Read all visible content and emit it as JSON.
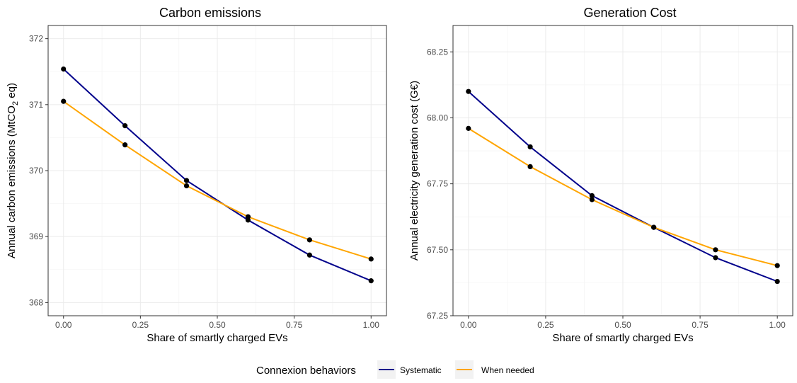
{
  "colors": {
    "systematic": "#00008b",
    "when_needed": "#ffa500",
    "grid_major": "#ebebeb",
    "grid_minor": "#f5f5f5",
    "panel_border": "#333333",
    "points": "#000000"
  },
  "legend": {
    "title": "Connexion behaviors",
    "items": [
      "Systematic",
      "When needed"
    ]
  },
  "chart_data": [
    {
      "type": "line",
      "title": "Carbon emissions",
      "xlabel": "Share of smartly charged EVs",
      "ylabel_main": "Annual carbon emissions (MtCO",
      "ylabel_sub": "2",
      "ylabel_end": " eq)",
      "x": [
        0.0,
        0.2,
        0.4,
        0.6,
        0.8,
        1.0
      ],
      "xlim": [
        -0.05,
        1.05
      ],
      "ylim": [
        367.8,
        372.2
      ],
      "x_ticks": [
        0.0,
        0.25,
        0.5,
        0.75,
        1.0
      ],
      "x_tick_labels": [
        "0.00",
        "0.25",
        "0.50",
        "0.75",
        "1.00"
      ],
      "y_ticks": [
        368,
        369,
        370,
        371,
        372
      ],
      "y_tick_labels": [
        "368",
        "369",
        "370",
        "371",
        "372"
      ],
      "series": [
        {
          "name": "Systematic",
          "values": [
            371.54,
            370.68,
            369.85,
            369.25,
            368.72,
            368.33
          ]
        },
        {
          "name": "When needed",
          "values": [
            371.05,
            370.39,
            369.77,
            369.3,
            368.95,
            368.66
          ]
        }
      ]
    },
    {
      "type": "line",
      "title": "Generation Cost",
      "xlabel": "Share of smartly charged EVs",
      "ylabel_main": "Annual electricity generation cost (G€)",
      "ylabel_sub": "",
      "ylabel_end": "",
      "x": [
        0.0,
        0.2,
        0.4,
        0.6,
        0.8,
        1.0
      ],
      "xlim": [
        -0.05,
        1.05
      ],
      "ylim": [
        67.25,
        68.35
      ],
      "x_ticks": [
        0.0,
        0.25,
        0.5,
        0.75,
        1.0
      ],
      "x_tick_labels": [
        "0.00",
        "0.25",
        "0.50",
        "0.75",
        "1.00"
      ],
      "y_ticks": [
        67.25,
        67.5,
        67.75,
        68.0,
        68.25
      ],
      "y_tick_labels": [
        "67.25",
        "67.50",
        "67.75",
        "68.00",
        "68.25"
      ],
      "series": [
        {
          "name": "Systematic",
          "values": [
            68.1,
            67.89,
            67.705,
            67.585,
            67.47,
            67.38
          ]
        },
        {
          "name": "When needed",
          "values": [
            67.96,
            67.815,
            67.69,
            67.585,
            67.5,
            67.44
          ]
        }
      ]
    }
  ]
}
